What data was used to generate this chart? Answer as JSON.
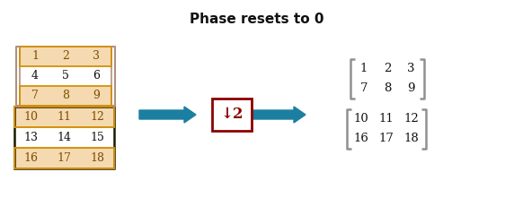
{
  "title": "Phase resets to 0",
  "title_fontsize": 11,
  "title_fontweight": "bold",
  "bg_color": "#ffffff",
  "arrow_color": "#1a7fa0",
  "matrix_fill_orange": "#f5d9b0",
  "matrix_border_orange": "#d4900a",
  "matrix_border_dark": "#1a1a00",
  "matrix_border_muted": "#b09080",
  "input_matrix1": [
    [
      1,
      2,
      3
    ],
    [
      4,
      5,
      6
    ],
    [
      7,
      8,
      9
    ]
  ],
  "input_matrix2": [
    [
      10,
      11,
      12
    ],
    [
      13,
      14,
      15
    ],
    [
      16,
      17,
      18
    ]
  ],
  "output_matrix1": [
    [
      1,
      2,
      3
    ],
    [
      7,
      8,
      9
    ]
  ],
  "output_matrix2": [
    [
      10,
      11,
      12
    ],
    [
      16,
      17,
      18
    ]
  ],
  "downsample_label": "↓2",
  "downsample_box_color": "#8b0000",
  "text_color_orange": "#7a4f00",
  "text_color_black": "#111111",
  "text_fontsize": 9,
  "out_text_fontsize": 9.5,
  "bracket_color": "#909090",
  "fig_w": 5.72,
  "fig_h": 2.4,
  "dpi": 100
}
